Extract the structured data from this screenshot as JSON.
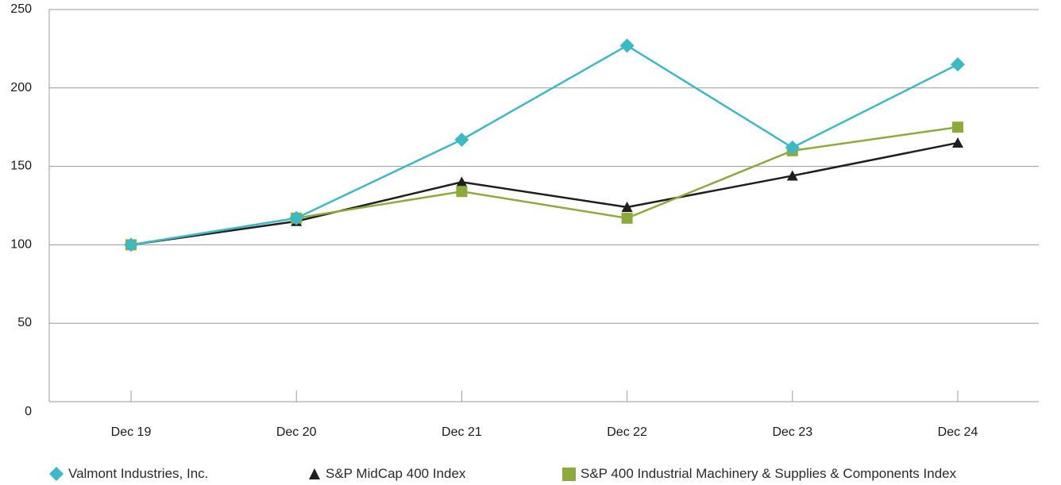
{
  "chart_data": {
    "type": "line",
    "categories": [
      "Dec 19",
      "Dec 20",
      "Dec 21",
      "Dec 22",
      "Dec 23",
      "Dec 24"
    ],
    "ylim": [
      0,
      250
    ],
    "yticks": [
      0,
      50,
      100,
      150,
      200,
      250
    ],
    "grid": "horizontal",
    "legend_position": "bottom",
    "series": [
      {
        "name": "Valmont Industries, Inc.",
        "marker": "diamond",
        "color": "#3cb9c6",
        "values": [
          100,
          117,
          167,
          227,
          162,
          215
        ]
      },
      {
        "name": "S&P MidCap 400 Index",
        "marker": "triangle",
        "color": "#1f1f1f",
        "values": [
          100,
          115,
          140,
          124,
          144,
          165
        ]
      },
      {
        "name": "S&P 400 Industrial Machinery & Supplies & Components Index",
        "marker": "square",
        "color": "#8cab3c",
        "values": [
          100,
          117,
          134,
          117,
          160,
          175
        ]
      }
    ]
  }
}
